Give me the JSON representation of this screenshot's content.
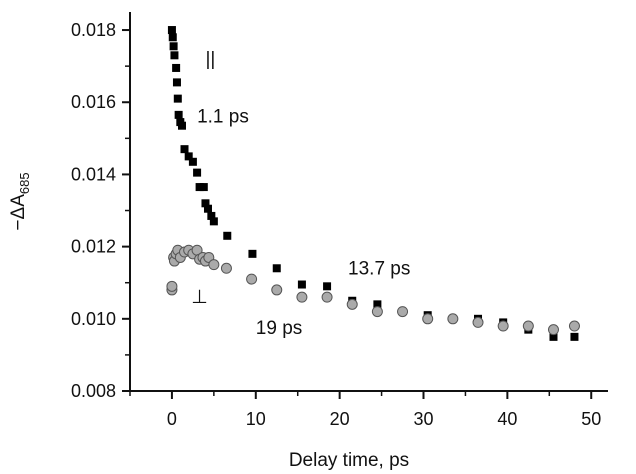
{
  "chart_data": {
    "type": "scatter",
    "title": "",
    "xlabel": "Delay time, ps",
    "ylabel_base": "−ΔA",
    "ylabel_sub": "685",
    "xlim": [
      -5,
      52
    ],
    "ylim": [
      0.008,
      0.0185
    ],
    "x_ticks": [
      0,
      10,
      20,
      30,
      40,
      50
    ],
    "x_tick_labels": [
      "0",
      "10",
      "20",
      "30",
      "40",
      "50"
    ],
    "y_ticks": [
      0.008,
      0.01,
      0.012,
      0.014,
      0.016,
      0.018
    ],
    "y_tick_labels": [
      "0.008",
      "0.010",
      "0.012",
      "0.014",
      "0.016",
      "0.018"
    ],
    "grid": false,
    "legend": "none",
    "series": [
      {
        "marker": "square",
        "color": "#000000",
        "points": [
          [
            0.0,
            0.018
          ],
          [
            0.1,
            0.0178
          ],
          [
            0.2,
            0.01755
          ],
          [
            0.3,
            0.0173
          ],
          [
            0.5,
            0.01695
          ],
          [
            0.6,
            0.01655
          ],
          [
            0.7,
            0.0161
          ],
          [
            0.8,
            0.01565
          ],
          [
            1.0,
            0.01545
          ],
          [
            1.2,
            0.01535
          ],
          [
            1.5,
            0.0147
          ],
          [
            2.0,
            0.0145
          ],
          [
            2.5,
            0.01435
          ],
          [
            3.0,
            0.01405
          ],
          [
            3.3,
            0.01365
          ],
          [
            3.8,
            0.01365
          ],
          [
            4.0,
            0.0132
          ],
          [
            4.3,
            0.01305
          ],
          [
            4.7,
            0.01285
          ],
          [
            5.0,
            0.0127
          ],
          [
            6.6,
            0.0123
          ],
          [
            9.6,
            0.0118
          ],
          [
            12.5,
            0.0114
          ],
          [
            15.5,
            0.01095
          ],
          [
            18.5,
            0.0109
          ],
          [
            21.5,
            0.0105
          ],
          [
            24.5,
            0.0104
          ],
          [
            30.5,
            0.0101
          ],
          [
            36.5,
            0.01
          ],
          [
            39.5,
            0.0099
          ],
          [
            42.5,
            0.0097
          ],
          [
            45.5,
            0.0095
          ],
          [
            48.0,
            0.0095
          ]
        ]
      },
      {
        "marker": "circle",
        "color": "#aaaaaa",
        "points": [
          [
            0.0,
            0.0108
          ],
          [
            0.0,
            0.0109
          ],
          [
            0.2,
            0.0117
          ],
          [
            0.3,
            0.0116
          ],
          [
            0.5,
            0.0118
          ],
          [
            0.7,
            0.0119
          ],
          [
            1.0,
            0.0117
          ],
          [
            1.5,
            0.01185
          ],
          [
            2.0,
            0.0119
          ],
          [
            2.5,
            0.0118
          ],
          [
            3.0,
            0.0119
          ],
          [
            3.3,
            0.01165
          ],
          [
            3.7,
            0.0117
          ],
          [
            4.0,
            0.0116
          ],
          [
            4.4,
            0.0117
          ],
          [
            5.0,
            0.0115
          ],
          [
            6.5,
            0.0114
          ],
          [
            9.5,
            0.0111
          ],
          [
            12.5,
            0.0108
          ],
          [
            15.5,
            0.0106
          ],
          [
            18.5,
            0.0106
          ],
          [
            21.5,
            0.0104
          ],
          [
            24.5,
            0.0102
          ],
          [
            27.5,
            0.0102
          ],
          [
            30.5,
            0.01
          ],
          [
            33.5,
            0.01
          ],
          [
            36.5,
            0.0099
          ],
          [
            39.5,
            0.0098
          ],
          [
            42.5,
            0.0098
          ],
          [
            45.5,
            0.0097
          ],
          [
            48.0,
            0.0098
          ]
        ]
      }
    ],
    "annotations": [
      {
        "text": "||",
        "x": 4.0,
        "y": 0.0172
      },
      {
        "text": "1.1 ps",
        "x": 3.0,
        "y": 0.0156
      },
      {
        "text": "13.7 ps",
        "x": 21.0,
        "y": 0.0114
      },
      {
        "text": "⊥",
        "x": 2.3,
        "y": 0.0106
      },
      {
        "text": "19 ps",
        "x": 10.0,
        "y": 0.00975
      }
    ]
  }
}
